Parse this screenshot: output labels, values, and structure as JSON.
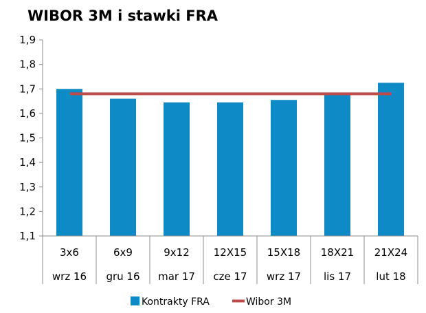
{
  "chart_data": {
    "type": "bar",
    "title": "WIBOR 3M i stawki FRA",
    "categories": [
      "3x6",
      "6x9",
      "9x12",
      "12X15",
      "15X18",
      "18X21",
      "21X24"
    ],
    "categories_secondary": [
      "wrz 16",
      "gru 16",
      "mar 17",
      "cze 17",
      "wrz 17",
      "lis 17",
      "lut 18"
    ],
    "series": [
      {
        "name": "Kontrakty FRA",
        "type": "bar",
        "color": "#0E8AC6",
        "values": [
          1.7,
          1.66,
          1.645,
          1.645,
          1.655,
          1.68,
          1.725
        ]
      },
      {
        "name": "Wibor 3M",
        "type": "line",
        "color": "#BC4B4B",
        "values": [
          1.68,
          1.68,
          1.68,
          1.68,
          1.68,
          1.68,
          1.68
        ]
      }
    ],
    "ylim": [
      1.1,
      1.9
    ],
    "yticks": [
      "1,1",
      "1,2",
      "1,3",
      "1,4",
      "1,5",
      "1,6",
      "1,7",
      "1,8",
      "1,9"
    ],
    "grid": false,
    "legend_position": "bottom"
  }
}
